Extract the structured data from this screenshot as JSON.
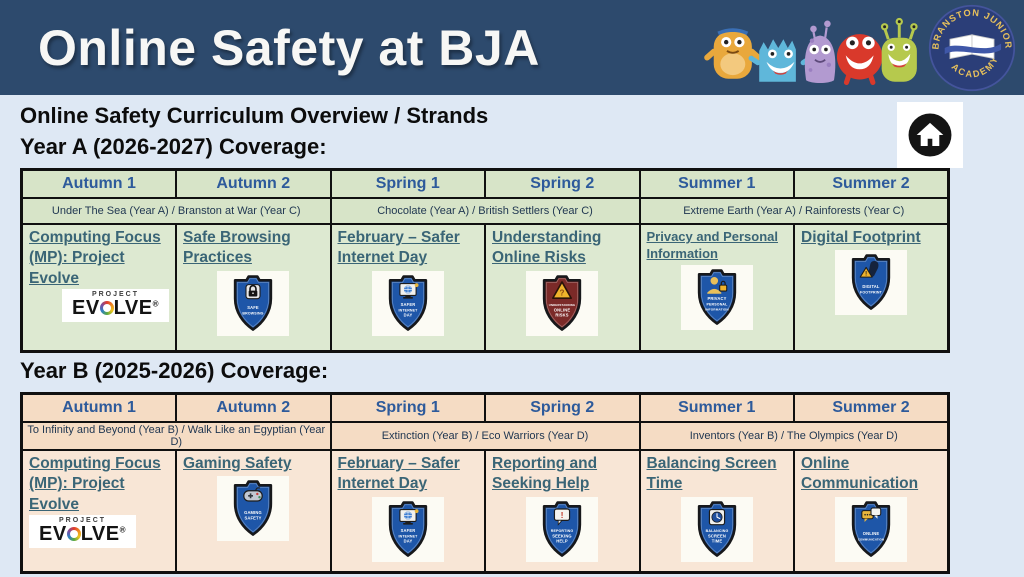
{
  "banner": {
    "title": "Online Safety at BJA",
    "logo": {
      "arc_top": "BRANSTON JUNIOR",
      "arc_bottom": "ACADEMY"
    }
  },
  "page": {
    "subtitle": "Online Safety Curriculum Overview / Strands"
  },
  "colors": {
    "banner_bg": "#2d4a6d",
    "body_bg": "#dee8f4",
    "term_text": "#2d5a9b",
    "link_text": "#3a6576",
    "border_color": "#101010",
    "year_a_header_bg": "#d7e4c8",
    "year_a_cell_bg": "#dde9d1",
    "year_b_header_bg": "#f5dcc4",
    "year_b_cell_bg": "#f8e6d6",
    "badge_blue": "#1e56a8",
    "badge_maroon": "#7b2a28"
  },
  "tables": [
    {
      "id": "year-a",
      "heading": "Year A (2026-2027) Coverage:",
      "terms": [
        "Autumn 1",
        "Autumn 2",
        "Spring 1",
        "Spring 2",
        "Summer 1",
        "Summer 2"
      ],
      "topics": [
        "Under The Sea (Year A) / Branston at War (Year C)",
        "Chocolate (Year A) / British Settlers (Year C)",
        "Extreme Earth (Year A) / Rainforests (Year C)"
      ],
      "cells": [
        {
          "label": "Computing Focus (MP): Project Evolve",
          "logo": "project-evolve",
          "logo_text_top": "PROJECT",
          "logo_word": "EVOLVE",
          "logo_reg": "®"
        },
        {
          "label": "Safe Browsing Practices",
          "badge": {
            "lines": [
              "SAFE",
              "BROWSING"
            ],
            "color": "#1e56a8",
            "icon": "lock"
          }
        },
        {
          "label": "February – Safer Internet Day",
          "badge": {
            "lines": [
              "SAFER",
              "INTERNET",
              "DAY"
            ],
            "color": "#1e56a8",
            "icon": "monitor"
          }
        },
        {
          "label": "Understanding Online Risks",
          "badge": {
            "lines": [
              "UNDERSTANDING",
              "ONLINE",
              "RISKS"
            ],
            "color": "#7b2a28",
            "icon": "warning"
          }
        },
        {
          "label": "Privacy and Personal Information",
          "small": true,
          "badge": {
            "lines": [
              "PRIVACY",
              "PERSONAL",
              "INFORMATION"
            ],
            "color": "#1e56a8",
            "icon": "person-lock"
          }
        },
        {
          "label": "Digital Footprint",
          "badge": {
            "lines": [
              "DIGITAL",
              "FOOTPRINT"
            ],
            "color": "#1e56a8",
            "icon": "footprint"
          }
        }
      ]
    },
    {
      "id": "year-b",
      "heading": "Year B (2025-2026) Coverage:",
      "terms": [
        "Autumn 1",
        "Autumn 2",
        "Spring 1",
        "Spring 2",
        "Summer 1",
        "Summer 2"
      ],
      "topics": [
        "To Infinity and Beyond (Year B) / Walk Like an Egyptian (Year D)",
        "Extinction (Year B) / Eco Warriors (Year D)",
        "Inventors (Year B) / The Olympics (Year D)"
      ],
      "cells": [
        {
          "label": "Computing Focus (MP): Project Evolve",
          "logo": "project-evolve",
          "logo_text_top": "PROJECT",
          "logo_word": "EVOLVE",
          "logo_reg": "®"
        },
        {
          "label": "Gaming Safety",
          "badge": {
            "lines": [
              "GAMING",
              "SAFETY"
            ],
            "color": "#1e56a8",
            "icon": "controller"
          }
        },
        {
          "label": "February – Safer Internet Day",
          "badge": {
            "lines": [
              "SAFER",
              "INTERNET",
              "DAY"
            ],
            "color": "#1e56a8",
            "icon": "monitor"
          }
        },
        {
          "label": "Reporting and Seeking Help",
          "badge": {
            "lines": [
              "REPORTING",
              "SEEKING",
              "HELP"
            ],
            "color": "#1e56a8",
            "icon": "speech"
          }
        },
        {
          "label": "Balancing Screen Time",
          "badge": {
            "lines": [
              "BALANCING",
              "SCREEN",
              "TIME"
            ],
            "color": "#1e56a8",
            "icon": "clock"
          }
        },
        {
          "label": "Online Communication",
          "badge": {
            "lines": [
              "ONLINE",
              "COMMUNICATION"
            ],
            "color": "#1e56a8",
            "icon": "chat"
          }
        }
      ]
    }
  ]
}
